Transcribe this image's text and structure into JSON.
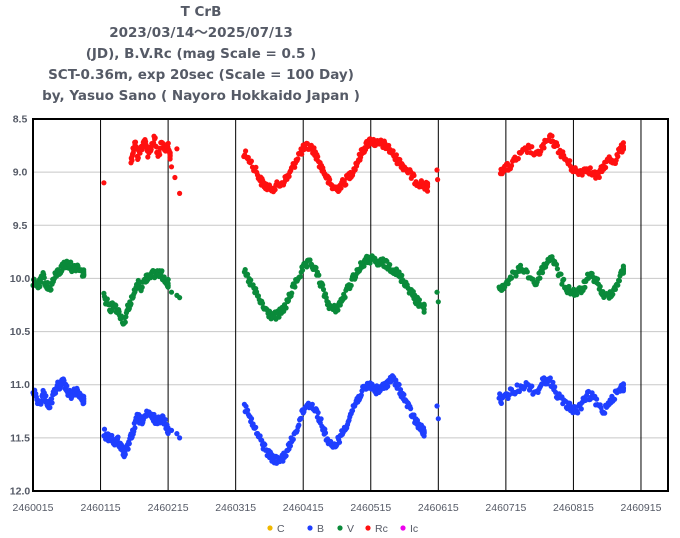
{
  "chart_data": {
    "type": "scatter",
    "title_lines": [
      "T CrB",
      "2023/03/14～2025/07/13",
      "(JD),  B.V.Rc (mag Scale = 0.5 )",
      "SCT-0.36m, exp 20sec (Scale = 100 Day)",
      "by, Yasuo Sano ( Nayoro Hokkaido Japan )"
    ],
    "x_tick_labels": [
      "2460015",
      "2460115",
      "2460215",
      "2460315",
      "2460415",
      "2460515",
      "2460615",
      "2460715",
      "2460815",
      "2460915"
    ],
    "x_ticks": [
      2460015,
      2460115,
      2460215,
      2460315,
      2460415,
      2460515,
      2460615,
      2460715,
      2460815,
      2460915
    ],
    "xlim": [
      2460015,
      2460955
    ],
    "y_tick_labels": [
      "8.5",
      "9.0",
      "9.5",
      "10.0",
      "10.5",
      "11.0",
      "11.5",
      "12.0"
    ],
    "y_ticks": [
      8.5,
      9.0,
      9.5,
      10.0,
      10.5,
      11.0,
      11.5,
      12.0
    ],
    "ylim": [
      8.5,
      12.0
    ],
    "y_inverted": true,
    "grid": true,
    "legend": [
      {
        "name": "C",
        "color": "#f0b800"
      },
      {
        "name": "B",
        "color": "#1f3fff"
      },
      {
        "name": "V",
        "color": "#0a8a3a"
      },
      {
        "name": "Rc",
        "color": "#ff1010"
      },
      {
        "name": "Ic",
        "color": "#ee00ee"
      }
    ],
    "series": [
      {
        "name": "Rc",
        "color": "#ff1010",
        "marker_r": 2.6,
        "seasons": [
          {
            "x": [
              2460160,
              2460163,
              2460166,
              2460170,
              2460175,
              2460180,
              2460185,
              2460190,
              2460195,
              2460200,
              2460205,
              2460210,
              2460214,
              2460218
            ],
            "y": [
              8.9,
              8.8,
              8.72,
              8.85,
              8.78,
              8.7,
              8.82,
              8.76,
              8.68,
              8.86,
              8.74,
              8.8,
              8.73,
              8.84
            ]
          },
          {
            "x": [
              2460120,
              2460220,
              2460225,
              2460228,
              2460232
            ],
            "y": [
              9.1,
              8.95,
              9.05,
              8.78,
              9.2
            ]
          },
          {
            "x": [
              2460327,
              2460335,
              2460345,
              2460352,
              2460358,
              2460365,
              2460372,
              2460380,
              2460387,
              2460393,
              2460400,
              2460407,
              2460414,
              2460420,
              2460427,
              2460433,
              2460440,
              2460446,
              2460452,
              2460458,
              2460465,
              2460471,
              2460478,
              2460485,
              2460491,
              2460497,
              2460503,
              2460508,
              2460514,
              2460520,
              2460526,
              2460532,
              2460538,
              2460545,
              2460551,
              2460557,
              2460563,
              2460569,
              2460575,
              2460581,
              2460587,
              2460593,
              2460599
            ],
            "y": [
              8.82,
              8.88,
              8.98,
              9.08,
              9.12,
              9.16,
              9.14,
              9.12,
              9.08,
              9.04,
              8.95,
              8.85,
              8.79,
              8.76,
              8.77,
              8.82,
              8.93,
              9.0,
              9.08,
              9.14,
              9.16,
              9.12,
              9.08,
              9.02,
              8.96,
              8.88,
              8.8,
              8.75,
              8.7,
              8.72,
              8.74,
              8.73,
              8.76,
              8.8,
              8.86,
              8.9,
              8.94,
              8.98,
              9.03,
              9.08,
              9.1,
              9.12,
              9.14
            ]
          },
          {
            "x": [
              2460613,
              2460614
            ],
            "y": [
              8.98,
              9.07
            ]
          },
          {
            "x": [
              2460707,
              2460712,
              2460720,
              2460730,
              2460740,
              2460750,
              2460760,
              2460768,
              2460775,
              2460782,
              2460790,
              2460798,
              2460806,
              2460813,
              2460820,
              2460828,
              2460836,
              2460844,
              2460852,
              2460860,
              2460868,
              2460876,
              2460883,
              2460889
            ],
            "y": [
              8.98,
              8.97,
              8.95,
              8.88,
              8.82,
              8.77,
              8.85,
              8.78,
              8.72,
              8.68,
              8.76,
              8.83,
              8.9,
              8.96,
              9.0,
              8.99,
              8.96,
              9.02,
              9.04,
              8.94,
              8.88,
              8.9,
              8.8,
              8.76
            ]
          }
        ]
      },
      {
        "name": "V",
        "color": "#0a8a3a",
        "marker_r": 2.6,
        "seasons": [
          {
            "x": [
              2460015,
              2460020,
              2460025,
              2460030,
              2460035,
              2460040,
              2460045,
              2460050,
              2460055,
              2460060,
              2460065,
              2460070,
              2460075,
              2460080,
              2460085,
              2460090
            ],
            "y": [
              10.03,
              10.08,
              10.05,
              9.98,
              10.06,
              10.1,
              10.02,
              9.95,
              9.93,
              9.88,
              9.86,
              9.88,
              9.91,
              9.89,
              9.93,
              9.95
            ]
          },
          {
            "x": [
              2460120,
              2460125,
              2460130,
              2460135,
              2460140,
              2460145,
              2460150,
              2460155,
              2460160,
              2460165,
              2460170,
              2460175,
              2460180,
              2460185,
              2460190,
              2460195,
              2460200,
              2460205,
              2460210,
              2460215
            ],
            "y": [
              10.18,
              10.22,
              10.28,
              10.24,
              10.3,
              10.35,
              10.42,
              10.28,
              10.22,
              10.14,
              10.05,
              10.08,
              10.02,
              9.98,
              9.95,
              9.97,
              9.94,
              9.96,
              10.0,
              10.05
            ]
          },
          {
            "x": [
              2460220,
              2460228,
              2460232
            ],
            "y": [
              10.13,
              10.16,
              10.18
            ]
          },
          {
            "x": [
              2460328,
              2460335,
              2460342,
              2460350,
              2460357,
              2460364,
              2460371,
              2460378,
              2460385,
              2460392,
              2460398,
              2460405,
              2460412,
              2460418,
              2460425,
              2460432,
              2460438,
              2460445,
              2460451,
              2460458,
              2460464,
              2460471,
              2460477,
              2460484,
              2460490,
              2460497,
              2460503,
              2460509,
              2460515,
              2460521,
              2460527,
              2460533,
              2460540,
              2460546,
              2460552,
              2460558,
              2460564,
              2460570,
              2460576,
              2460582,
              2460588,
              2460594
            ],
            "y": [
              9.94,
              10.02,
              10.1,
              10.2,
              10.28,
              10.33,
              10.36,
              10.34,
              10.3,
              10.22,
              10.12,
              10.02,
              9.94,
              9.88,
              9.86,
              9.9,
              10.0,
              10.12,
              10.22,
              10.3,
              10.28,
              10.22,
              10.15,
              10.06,
              9.98,
              9.92,
              9.86,
              9.83,
              9.82,
              9.84,
              9.86,
              9.85,
              9.88,
              9.9,
              9.94,
              9.98,
              10.02,
              10.08,
              10.14,
              10.2,
              10.24,
              10.28
            ]
          },
          {
            "x": [
              2460613,
              2460615
            ],
            "y": [
              10.13,
              10.22
            ]
          },
          {
            "x": [
              2460705,
              2460710,
              2460720,
              2460730,
              2460740,
              2460750,
              2460760,
              2460768,
              2460775,
              2460782,
              2460790,
              2460798,
              2460806,
              2460813,
              2460820,
              2460828,
              2460836,
              2460844,
              2460852,
              2460860,
              2460868,
              2460876,
              2460883,
              2460889
            ],
            "y": [
              10.08,
              10.1,
              10.0,
              9.95,
              9.9,
              9.98,
              10.05,
              9.92,
              9.86,
              9.78,
              9.9,
              10.02,
              10.1,
              10.12,
              10.14,
              10.1,
              10.0,
              9.98,
              10.05,
              10.18,
              10.15,
              10.1,
              10.0,
              9.92
            ]
          }
        ]
      },
      {
        "name": "B",
        "color": "#1f3fff",
        "marker_r": 2.6,
        "seasons": [
          {
            "x": [
              2460015,
              2460020,
              2460025,
              2460030,
              2460035,
              2460040,
              2460045,
              2460050,
              2460055,
              2460060,
              2460065,
              2460070,
              2460075,
              2460080,
              2460085,
              2460090
            ],
            "y": [
              11.05,
              11.12,
              11.18,
              11.08,
              11.15,
              11.2,
              11.1,
              11.02,
              11.0,
              10.98,
              11.05,
              11.1,
              11.08,
              11.06,
              11.12,
              11.15
            ]
          },
          {
            "x": [
              2460120,
              2460125,
              2460130,
              2460135,
              2460140,
              2460145,
              2460150,
              2460155,
              2460160,
              2460165,
              2460170,
              2460175,
              2460180,
              2460185,
              2460190,
              2460195,
              2460200,
              2460205,
              2460210,
              2460215
            ],
            "y": [
              11.45,
              11.5,
              11.48,
              11.55,
              11.52,
              11.58,
              11.65,
              11.6,
              11.5,
              11.4,
              11.3,
              11.35,
              11.3,
              11.28,
              11.3,
              11.32,
              11.35,
              11.3,
              11.35,
              11.42
            ]
          },
          {
            "x": [
              2460220,
              2460228,
              2460232
            ],
            "y": [
              11.43,
              11.46,
              11.5
            ]
          },
          {
            "x": [
              2460328,
              2460335,
              2460342,
              2460350,
              2460357,
              2460364,
              2460371,
              2460378,
              2460385,
              2460392,
              2460398,
              2460405,
              2460412,
              2460418,
              2460425,
              2460432,
              2460438,
              2460445,
              2460451,
              2460458,
              2460464,
              2460471,
              2460477,
              2460484,
              2460490,
              2460497,
              2460503,
              2460509,
              2460515,
              2460521,
              2460527,
              2460533,
              2460540,
              2460546,
              2460552,
              2460558,
              2460564,
              2460570,
              2460576,
              2460582,
              2460588,
              2460594
            ],
            "y": [
              11.2,
              11.3,
              11.4,
              11.5,
              11.58,
              11.65,
              11.7,
              11.72,
              11.68,
              11.62,
              11.52,
              11.42,
              11.3,
              11.2,
              11.18,
              11.22,
              11.3,
              11.42,
              11.52,
              11.6,
              11.55,
              11.48,
              11.4,
              11.3,
              11.2,
              11.12,
              11.06,
              11.02,
              11.0,
              11.04,
              11.06,
              11.02,
              10.98,
              10.94,
              10.98,
              11.05,
              11.12,
              11.2,
              11.28,
              11.35,
              11.4,
              11.45
            ]
          },
          {
            "x": [
              2460613,
              2460615
            ],
            "y": [
              11.2,
              11.32
            ]
          },
          {
            "x": [
              2460705,
              2460710,
              2460720,
              2460730,
              2460740,
              2460750,
              2460760,
              2460768,
              2460775,
              2460782,
              2460790,
              2460798,
              2460806,
              2460813,
              2460820,
              2460828,
              2460836,
              2460844,
              2460852,
              2460860,
              2460868,
              2460876,
              2460883,
              2460889
            ],
            "y": [
              11.12,
              11.15,
              11.08,
              11.05,
              11.0,
              11.02,
              11.08,
              10.98,
              10.95,
              10.98,
              11.08,
              11.15,
              11.2,
              11.22,
              11.25,
              11.18,
              11.1,
              11.12,
              11.2,
              11.25,
              11.15,
              11.1,
              11.05,
              11.02
            ]
          }
        ]
      }
    ]
  }
}
